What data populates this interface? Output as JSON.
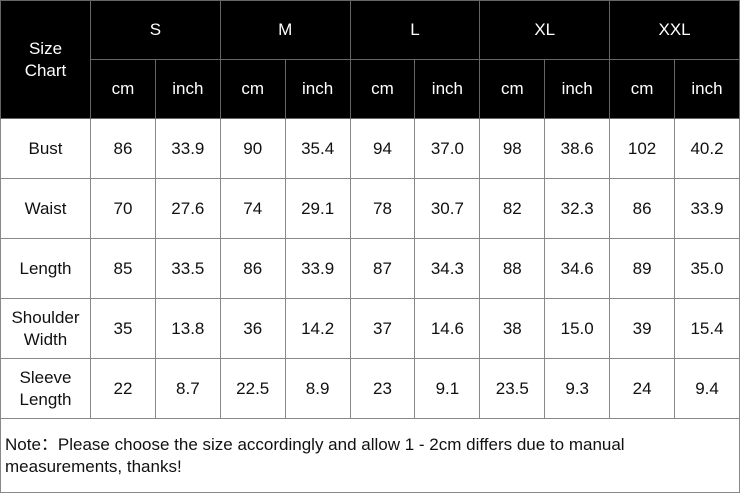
{
  "table": {
    "corner": "Size Chart",
    "sizes": [
      {
        "name": "S",
        "units": [
          "cm",
          "inch"
        ]
      },
      {
        "name": "M",
        "units": [
          "cm",
          "inch"
        ]
      },
      {
        "name": "L",
        "units": [
          "cm",
          "inch"
        ]
      },
      {
        "name": "XL",
        "units": [
          "cm",
          "inch"
        ]
      },
      {
        "name": "XXL",
        "units": [
          "cm",
          "inch"
        ]
      }
    ],
    "rows": [
      {
        "label": "Bust",
        "values": [
          "86",
          "33.9",
          "90",
          "35.4",
          "94",
          "37.0",
          "98",
          "38.6",
          "102",
          "40.2"
        ]
      },
      {
        "label": "Waist",
        "values": [
          "70",
          "27.6",
          "74",
          "29.1",
          "78",
          "30.7",
          "82",
          "32.3",
          "86",
          "33.9"
        ]
      },
      {
        "label": "Length",
        "values": [
          "85",
          "33.5",
          "86",
          "33.9",
          "87",
          "34.3",
          "88",
          "34.6",
          "89",
          "35.0"
        ]
      },
      {
        "label": "Shoulder Width",
        "values": [
          "35",
          "13.8",
          "36",
          "14.2",
          "37",
          "14.6",
          "38",
          "15.0",
          "39",
          "15.4"
        ]
      },
      {
        "label": "Sleeve Length",
        "values": [
          "22",
          "8.7",
          "22.5",
          "8.9",
          "23",
          "9.1",
          "23.5",
          "9.3",
          "24",
          "9.4"
        ]
      }
    ],
    "note": "Note：Please choose the size accordingly and  allow 1 - 2cm differs due to manual measurements, thanks!"
  }
}
